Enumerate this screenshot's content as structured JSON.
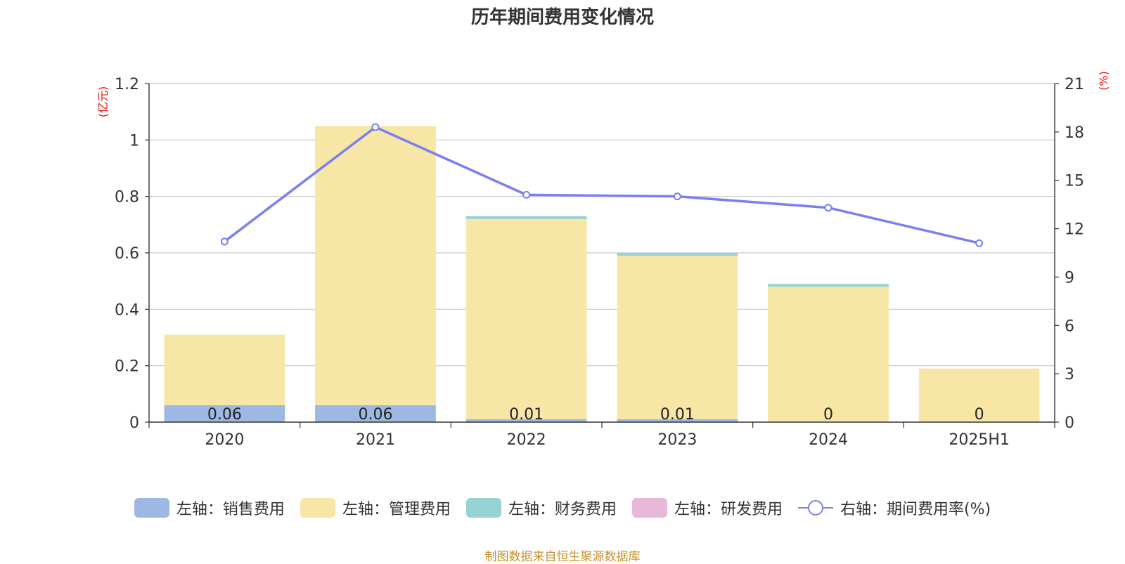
{
  "chart_data": {
    "type": "bar",
    "title": "历年期间费用变化情况",
    "categories": [
      "2020",
      "2021",
      "2022",
      "2023",
      "2024",
      "2025H1"
    ],
    "left_axis": {
      "unit": "(亿元)",
      "ylim": [
        0,
        1.2
      ],
      "ticks": [
        "0",
        "0.2",
        "0.4",
        "0.6",
        "0.8",
        "1",
        "1.2"
      ]
    },
    "right_axis": {
      "unit": "(%)",
      "ylim": [
        0,
        21
      ],
      "ticks": [
        "0",
        "3",
        "6",
        "9",
        "12",
        "15",
        "18",
        "21"
      ]
    },
    "stacked": true,
    "grid": true,
    "legend_position": "bottom",
    "series": [
      {
        "name": "左轴：销售费用",
        "axis": "left",
        "color": "#9db8e2",
        "values": [
          0.06,
          0.06,
          0.01,
          0.01,
          0,
          0
        ],
        "labels": [
          "0.06",
          "0.06",
          "0.01",
          "0.01",
          "0",
          "0"
        ]
      },
      {
        "name": "左轴：管理费用",
        "axis": "left",
        "color": "#f7e6a6",
        "values": [
          0.25,
          0.99,
          0.71,
          0.58,
          0.48,
          0.19
        ]
      },
      {
        "name": "左轴：财务费用",
        "axis": "left",
        "color": "#96d3d2",
        "values": [
          0,
          0,
          0.01,
          0.01,
          0.01,
          0
        ]
      },
      {
        "name": "左轴：研发费用",
        "axis": "left",
        "color": "#e8b8d8",
        "values": [
          0,
          0,
          0,
          0,
          0,
          0
        ]
      },
      {
        "name": "右轴：期间费用率(%)",
        "axis": "right",
        "type": "line",
        "color": "#7b7ff0",
        "values": [
          11.2,
          18.3,
          14.1,
          14.0,
          13.3,
          11.1
        ]
      }
    ]
  },
  "source_note": "制图数据来自恒生聚源数据库"
}
